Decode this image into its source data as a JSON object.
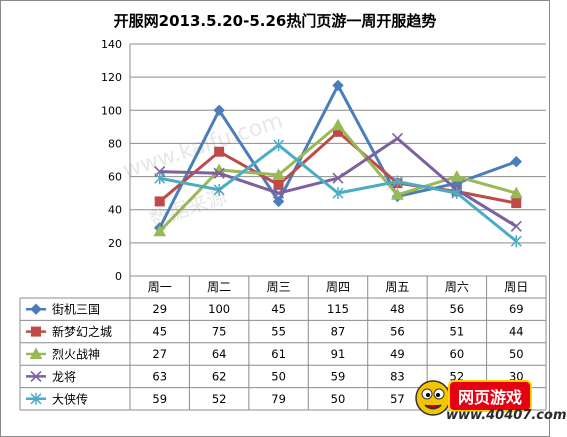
{
  "chart_data": {
    "type": "line",
    "title": "开服网2013.5.20-5.26热门页游一周开服趋势",
    "categories": [
      "周一",
      "周二",
      "周三",
      "周四",
      "周五",
      "周六",
      "周日"
    ],
    "ylim": [
      0,
      140
    ],
    "yticks": [
      0,
      20,
      40,
      60,
      80,
      100,
      120,
      140
    ],
    "grid": true,
    "legend": "data-table",
    "series": [
      {
        "name": "街机三国",
        "values": [
          29,
          100,
          45,
          115,
          48,
          56,
          69
        ],
        "color": "#4a7ebb",
        "marker": "diamond"
      },
      {
        "name": "新梦幻之城",
        "values": [
          45,
          75,
          55,
          87,
          56,
          51,
          44
        ],
        "color": "#be4b48",
        "marker": "square"
      },
      {
        "name": "烈火战神",
        "values": [
          27,
          64,
          61,
          91,
          49,
          60,
          50
        ],
        "color": "#98b954",
        "marker": "triangle"
      },
      {
        "name": "龙将",
        "values": [
          63,
          62,
          50,
          59,
          83,
          52,
          30
        ],
        "color": "#7d60a0",
        "marker": "x"
      },
      {
        "name": "大侠传",
        "values": [
          59,
          52,
          79,
          50,
          57,
          50,
          21
        ],
        "color": "#4bacc6",
        "marker": "star"
      }
    ]
  },
  "watermark": {
    "line1": "www.kaifu.com",
    "line2": "数据来源"
  },
  "logo": {
    "badge": "网页游戏",
    "url": "www.40407.com"
  }
}
